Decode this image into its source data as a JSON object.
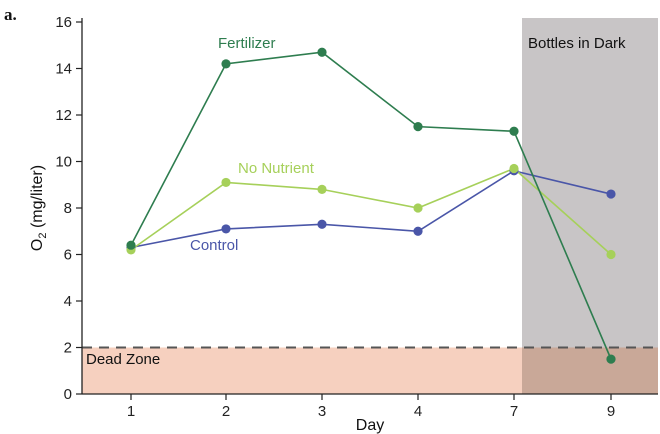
{
  "panel_label": "a.",
  "chart_data": {
    "type": "line",
    "xlabel": "Day",
    "ylabel_main": "O",
    "ylabel_sub": "2",
    "ylabel_unit": " (mg/liter)",
    "categories": [
      "1",
      "2",
      "3",
      "4",
      "7",
      "9"
    ],
    "ylim": [
      0,
      16
    ],
    "yticks": [
      0,
      2,
      4,
      6,
      8,
      10,
      12,
      14,
      16
    ],
    "grid": false,
    "series": [
      {
        "name": "Fertilizer",
        "color": "#2e7d4f",
        "values": [
          6.4,
          14.2,
          14.7,
          11.5,
          11.3,
          1.5
        ]
      },
      {
        "name": "No Nutrient",
        "color": "#a6d05a",
        "values": [
          6.2,
          9.1,
          8.8,
          8.0,
          9.7,
          6.0
        ]
      },
      {
        "name": "Control",
        "color": "#4a56a8",
        "values": [
          6.3,
          7.1,
          7.3,
          7.0,
          9.6,
          8.6
        ]
      }
    ],
    "regions": {
      "dead_zone": {
        "label": "Dead Zone",
        "y_max": 2,
        "color": "#f6d0bf"
      },
      "dark": {
        "label": "Bottles in Dark",
        "x_from_category": "7",
        "color": "#c8c5c6"
      }
    }
  }
}
